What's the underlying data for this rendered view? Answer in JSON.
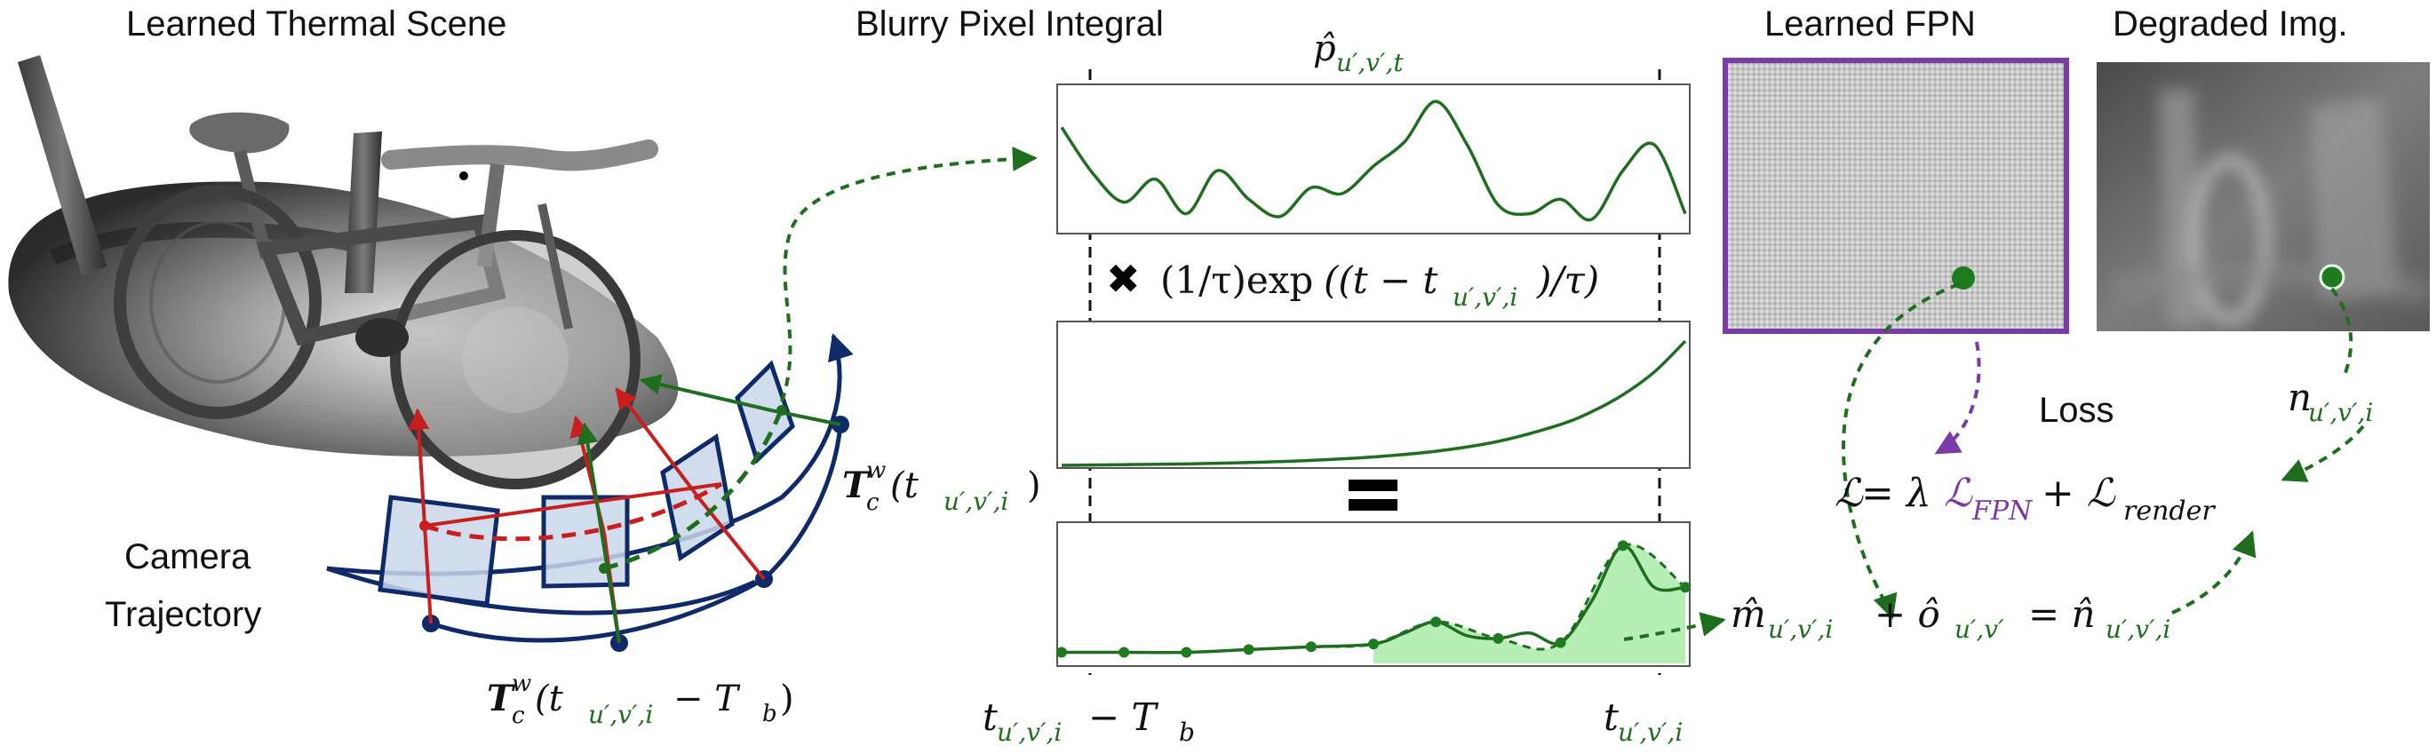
{
  "colors": {
    "green": "#1f6e1f",
    "green_dot": "#1e7a1e",
    "fill_green": "#9ee89e",
    "red": "#c81e1e",
    "navy": "#0f2a68",
    "purple": "#7a3aa8",
    "frame_fill": "#c9d6ea"
  },
  "headings": {
    "scene": "Learned Thermal Scene",
    "integral": "Blurry Pixel Integral",
    "fpn": "Learned FPN",
    "degraded": "Degraded Img."
  },
  "trajectory_label": {
    "line1": "Camera",
    "line2": "Trajectory"
  },
  "pose_upper": {
    "bold": "T",
    "sub": "c",
    "sup": "w",
    "open": "(t",
    "idx": "u′,v′,i",
    "close": ")"
  },
  "pose_lower": {
    "bold": "T",
    "sub": "c",
    "sup": "w",
    "open": "(t",
    "idx": "u′,v′,i",
    "minus": " − T",
    "Tb_sub": "b",
    "close": ")"
  },
  "signal_label": {
    "base": "p̂",
    "sub": "u′,v′,t"
  },
  "weight_expr": {
    "times_glyph": "✖",
    "text_a": "(1/τ)exp",
    "text_b": "((t − t",
    "idx": "u′,v′,i",
    "text_c": ")/τ)"
  },
  "equals_glyph": "=",
  "time_axis": {
    "left_t": "t",
    "left_idx": "u′,v′,i",
    "left_rest": " − T",
    "left_b": "b",
    "right_t": "t",
    "right_idx": "u′,v′,i"
  },
  "loss": {
    "title": "Loss",
    "L": "ℒ",
    "eq": " = λ",
    "L_fpn": "ℒ",
    "fpn_sub": "FPN",
    "plus": " + ℒ",
    "render_sub": "render"
  },
  "model_eq": {
    "m": "m̂",
    "m_sub": "u′,v′,i",
    "plus": " + ô",
    "o_sub": "u′,v′",
    "eq": " = n̂",
    "n_sub": "u′,v′,i"
  },
  "observed": {
    "n": "n",
    "sub": "u′,v′,i"
  },
  "chart_data": [
    {
      "type": "line",
      "name_hint": "p-hat signal",
      "x": [
        0,
        0.05,
        0.1,
        0.15,
        0.2,
        0.25,
        0.3,
        0.35,
        0.4,
        0.45,
        0.5,
        0.55,
        0.6,
        0.65,
        0.7,
        0.75,
        0.8,
        0.85,
        0.9,
        0.95,
        1.0
      ],
      "y": [
        0.72,
        0.4,
        0.2,
        0.36,
        0.12,
        0.42,
        0.22,
        0.1,
        0.3,
        0.26,
        0.45,
        0.62,
        0.9,
        0.6,
        0.18,
        0.12,
        0.22,
        0.08,
        0.42,
        0.6,
        0.12
      ]
    },
    {
      "type": "line",
      "name_hint": "exponential weight",
      "x": [
        0,
        0.1,
        0.2,
        0.3,
        0.4,
        0.5,
        0.6,
        0.7,
        0.8,
        0.85,
        0.9,
        0.95,
        1.0
      ],
      "y": [
        0.0,
        0.005,
        0.01,
        0.02,
        0.035,
        0.06,
        0.1,
        0.17,
        0.29,
        0.38,
        0.5,
        0.66,
        0.88
      ]
    },
    {
      "type": "area",
      "name_hint": "weighted product",
      "x": [
        0,
        0.1,
        0.2,
        0.3,
        0.4,
        0.5,
        0.55,
        0.6,
        0.65,
        0.7,
        0.75,
        0.8,
        0.85,
        0.9,
        0.95,
        1.0
      ],
      "y": [
        0.08,
        0.08,
        0.08,
        0.1,
        0.12,
        0.14,
        0.22,
        0.3,
        0.2,
        0.18,
        0.22,
        0.15,
        0.45,
        0.85,
        0.55,
        0.55
      ],
      "samples_x": [
        0,
        0.1,
        0.2,
        0.3,
        0.4,
        0.5,
        0.6,
        0.7,
        0.8,
        0.9,
        1.0
      ]
    }
  ]
}
